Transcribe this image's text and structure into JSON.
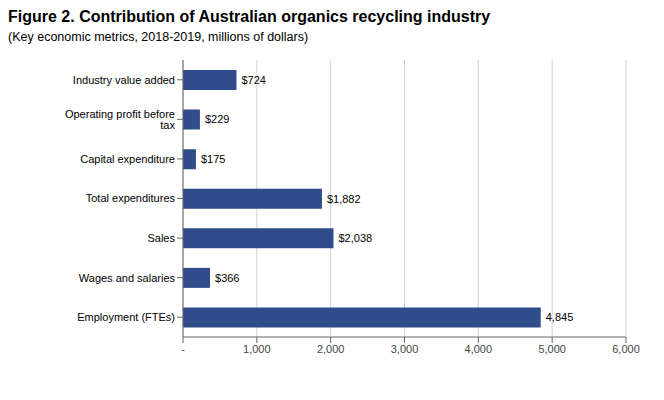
{
  "chart_data": {
    "type": "bar",
    "orientation": "horizontal",
    "title": "Figure 2. Contribution of Australian organics recycling industry",
    "subtitle": "(Key economic metrics, 2018-2019, millions of dollars)",
    "categories": [
      "Employment (FTEs)",
      "Wages and salaries",
      "Sales",
      "Total expenditures",
      "Capital expenditure",
      "Operating profit before tax",
      "Industry value added"
    ],
    "values": [
      4845,
      366,
      2038,
      1882,
      175,
      229,
      724
    ],
    "value_labels": [
      "4,845",
      "$366",
      "$2,038",
      "$1,882",
      "$175",
      "$229",
      "$724"
    ],
    "color": "#2E4D8A",
    "xlim": [
      0,
      6000
    ],
    "xticks": [
      {
        "value": 0,
        "label": "-"
      },
      {
        "value": 1000,
        "label": "1,000"
      },
      {
        "value": 2000,
        "label": "2,000"
      },
      {
        "value": 3000,
        "label": "3,000"
      },
      {
        "value": 4000,
        "label": "4,000"
      },
      {
        "value": 5000,
        "label": "5,000"
      },
      {
        "value": 6000,
        "label": "6,000"
      }
    ],
    "grid": true,
    "data_labels": true
  }
}
